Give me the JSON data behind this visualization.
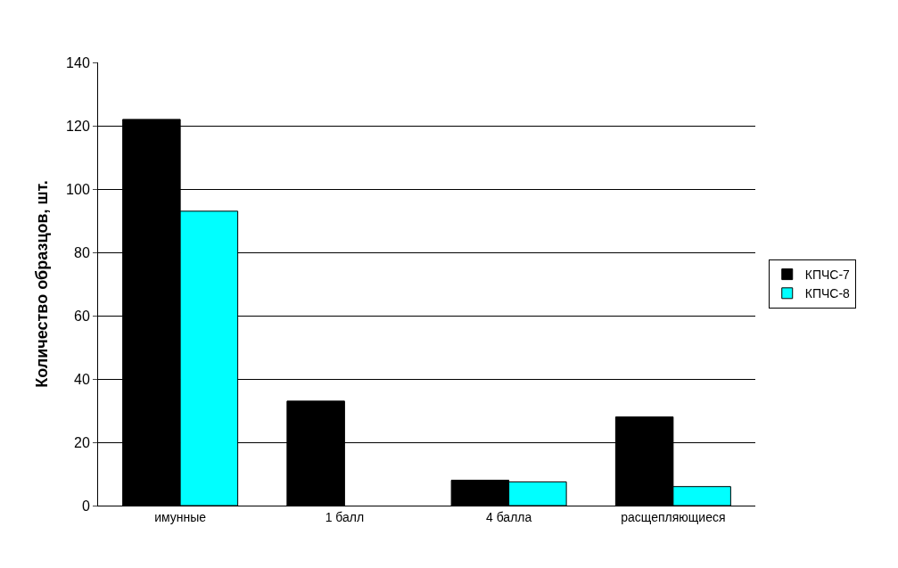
{
  "chart_data": {
    "type": "bar",
    "ylabel": "Количество образцов, шт.",
    "categories": [
      "имунные",
      "1 балл",
      "4 балла",
      "расщепляющиеся"
    ],
    "series": [
      {
        "name": "КПЧС-7",
        "color": "#000000",
        "values": [
          122,
          33,
          8,
          28
        ]
      },
      {
        "name": "КПЧС-8",
        "color": "#00ffff",
        "values": [
          93,
          null,
          7.5,
          6
        ]
      }
    ],
    "ylim": [
      0,
      140
    ],
    "yticks": [
      0,
      20,
      40,
      60,
      80,
      100,
      120,
      140
    ],
    "grid": "y",
    "legend": "right"
  }
}
